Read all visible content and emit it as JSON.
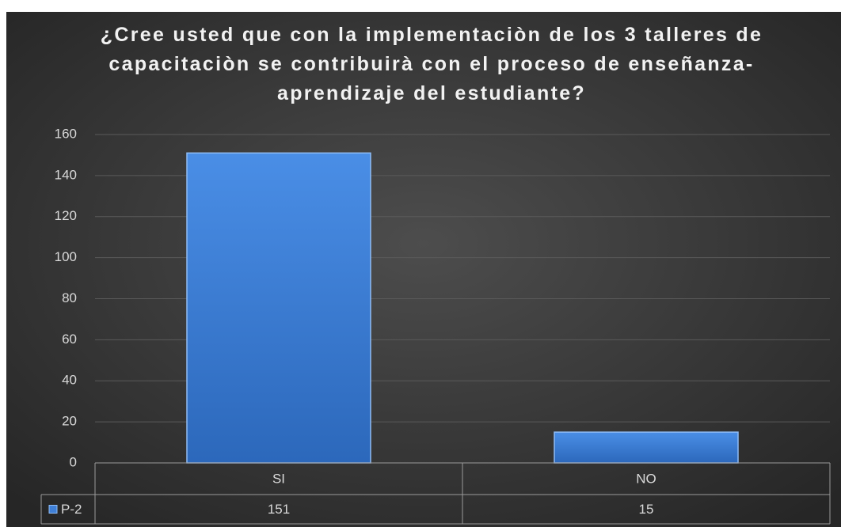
{
  "chart_data": {
    "type": "bar",
    "title": "¿Cree usted que con la implementaciòn de los 3 talleres de capacitaciòn se contribuirà con el proceso de enseñanza-aprendizaje del estudiante?",
    "categories": [
      "SI",
      "NO"
    ],
    "series": [
      {
        "name": "P-2",
        "color": "#3f7fd6",
        "values": [
          151,
          15
        ]
      }
    ],
    "ylim": [
      0,
      160
    ],
    "yticks": [
      0,
      20,
      40,
      60,
      80,
      100,
      120,
      140,
      160
    ],
    "grid": true
  }
}
